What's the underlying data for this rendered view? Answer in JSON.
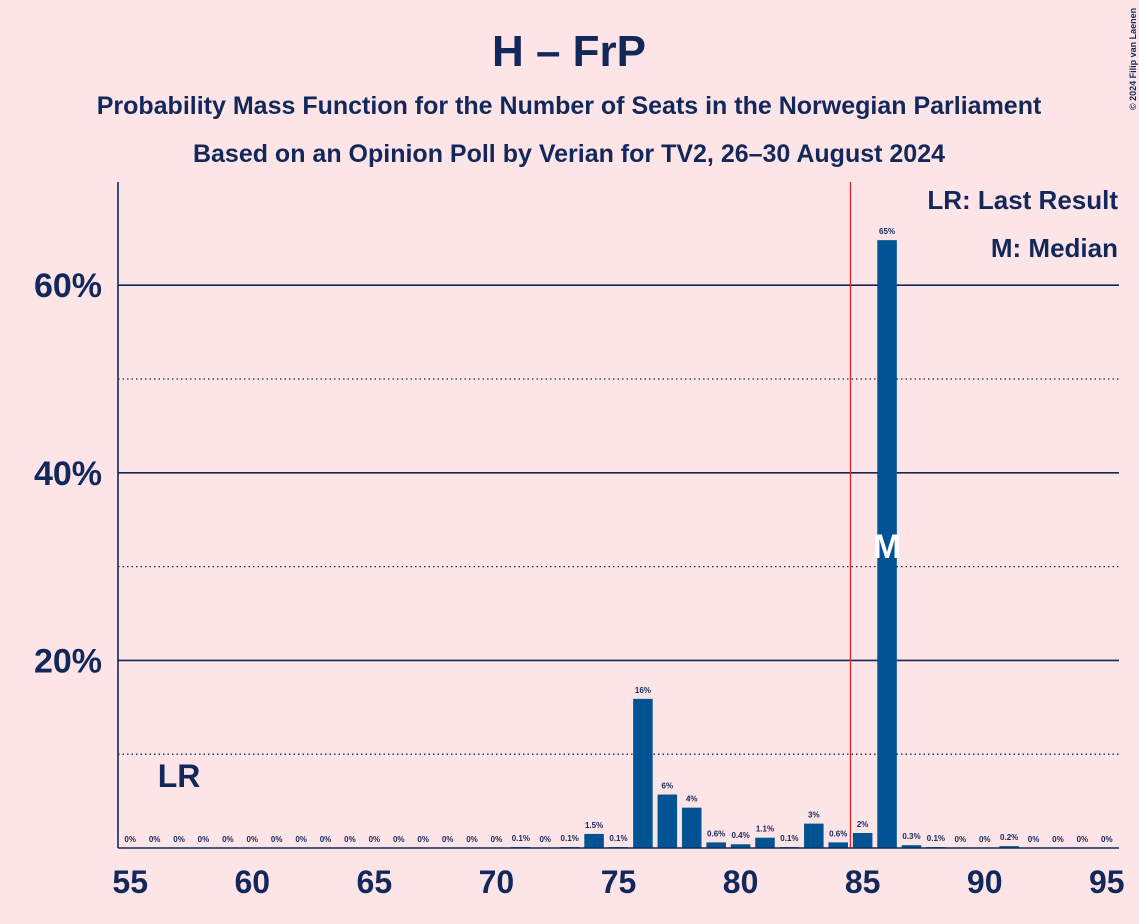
{
  "chart_data": {
    "type": "bar",
    "title": "H – FrP",
    "subtitle": [
      "Probability Mass Function for the Number of Seats in the Norwegian Parliament",
      "Based on an Opinion Poll by Verian for TV2, 26–30 August 2024"
    ],
    "credit": "© 2024 Filip van Laenen",
    "categories": [
      55,
      56,
      57,
      58,
      59,
      60,
      61,
      62,
      63,
      64,
      65,
      66,
      67,
      68,
      69,
      70,
      71,
      72,
      73,
      74,
      75,
      76,
      77,
      78,
      79,
      80,
      81,
      82,
      83,
      84,
      85,
      86,
      87,
      88,
      89,
      90,
      91,
      92,
      93,
      94,
      95
    ],
    "values": [
      0,
      0,
      0,
      0,
      0,
      0,
      0,
      0,
      0,
      0,
      0,
      0,
      0,
      0,
      0,
      0,
      0.1,
      0,
      0.1,
      1.5,
      0.1,
      15.9,
      5.7,
      4.3,
      0.6,
      0.4,
      1.1,
      0.1,
      2.6,
      0.6,
      1.6,
      64.8,
      0.3,
      0.1,
      0,
      0,
      0.2,
      0,
      0,
      0,
      0
    ],
    "value_labels": [
      "0%",
      "0%",
      "0%",
      "0%",
      "0%",
      "0%",
      "0%",
      "0%",
      "0%",
      "0%",
      "0%",
      "0%",
      "0%",
      "0%",
      "0%",
      "0%",
      "0.1%",
      "0%",
      "0.1%",
      "1.5%",
      "0.1%",
      "16%",
      "6%",
      "4%",
      "0.6%",
      "0.4%",
      "1.1%",
      "0.1%",
      "3%",
      "0.6%",
      "2%",
      "65%",
      "0.3%",
      "0.1%",
      "0%",
      "0%",
      "0.2%",
      "0%",
      "0%",
      "0%",
      "0%"
    ],
    "color": "#005494",
    "xlim": [
      54.5,
      95.5
    ],
    "xticks": [
      55,
      60,
      65,
      70,
      75,
      80,
      85,
      90,
      95
    ],
    "ylim": [
      0,
      71
    ],
    "yticks": [
      {
        "value": 20,
        "label": "20%"
      },
      {
        "value": 40,
        "label": "40%"
      },
      {
        "value": 60,
        "label": "60%"
      }
    ],
    "minor_yticks": [
      10,
      30,
      50
    ],
    "grid": true,
    "majority_line": 85,
    "last_result": {
      "seat": 57,
      "label": "LR"
    },
    "median": {
      "seat": 86,
      "label": "M"
    },
    "legend": [
      "LR: Last Result",
      "M: Median"
    ]
  }
}
